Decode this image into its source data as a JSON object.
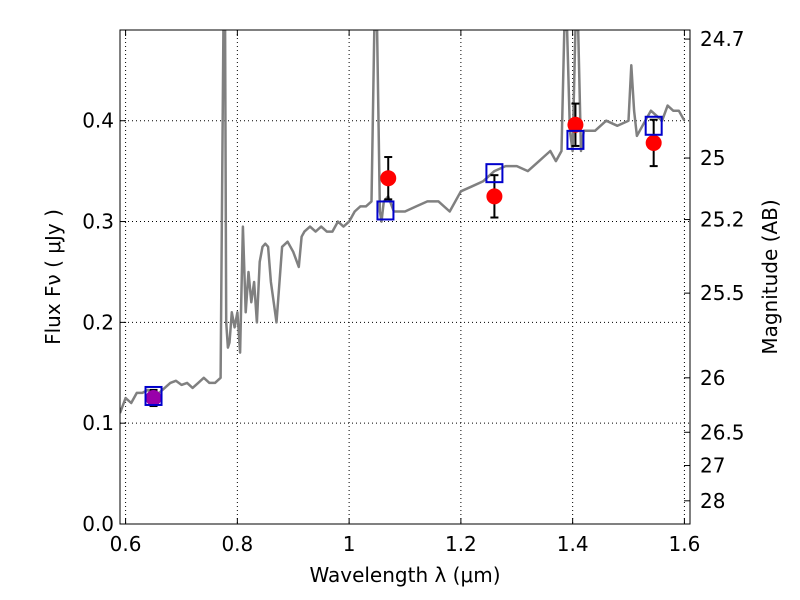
{
  "chart_data": {
    "type": "line",
    "title": "",
    "xlabel": "Wavelength  λ (μm)",
    "ylabel": "Flux  Fν  ( μJy )",
    "y2label": "Magnitude (AB)",
    "xlim": [
      0.59,
      1.61
    ],
    "ylim": [
      0.0,
      0.49
    ],
    "grid": true,
    "x_ticks": [
      0.6,
      0.8,
      1.0,
      1.2,
      1.4,
      1.6
    ],
    "x_tick_labels": [
      "0.6",
      "0.8",
      "1",
      "1.2",
      "1.4",
      "1.6"
    ],
    "y_ticks": [
      0.0,
      0.1,
      0.2,
      0.3,
      0.4
    ],
    "y_tick_labels": [
      "0.0",
      "0.1",
      "0.2",
      "0.3",
      "0.4"
    ],
    "y2_ticks": [
      {
        "label": "24.7",
        "flux": 0.481
      },
      {
        "label": "25",
        "flux": 0.363
      },
      {
        "label": "25.2",
        "flux": 0.302
      },
      {
        "label": "25.5",
        "flux": 0.229
      },
      {
        "label": "26",
        "flux": 0.145
      },
      {
        "label": "26.5",
        "flux": 0.091
      },
      {
        "label": "27",
        "flux": 0.058
      },
      {
        "label": "28",
        "flux": 0.023
      }
    ],
    "series": [
      {
        "kind": "line",
        "color": "#808080",
        "x": [
          0.59,
          0.6,
          0.61,
          0.62,
          0.63,
          0.64,
          0.65,
          0.66,
          0.67,
          0.68,
          0.69,
          0.7,
          0.71,
          0.72,
          0.73,
          0.74,
          0.75,
          0.76,
          0.77,
          0.775,
          0.778,
          0.78,
          0.783,
          0.786,
          0.79,
          0.795,
          0.8,
          0.805,
          0.81,
          0.815,
          0.82,
          0.825,
          0.83,
          0.835,
          0.84,
          0.845,
          0.85,
          0.855,
          0.86,
          0.87,
          0.88,
          0.89,
          0.9,
          0.91,
          0.915,
          0.92,
          0.93,
          0.94,
          0.95,
          0.96,
          0.97,
          0.98,
          0.99,
          1.0,
          1.01,
          1.02,
          1.03,
          1.04,
          1.045,
          1.05,
          1.055,
          1.058,
          1.062,
          1.07,
          1.08,
          1.09,
          1.1,
          1.12,
          1.14,
          1.16,
          1.18,
          1.2,
          1.22,
          1.24,
          1.26,
          1.28,
          1.3,
          1.32,
          1.34,
          1.35,
          1.36,
          1.37,
          1.38,
          1.385,
          1.39,
          1.395,
          1.4,
          1.405,
          1.41,
          1.415,
          1.42,
          1.44,
          1.46,
          1.48,
          1.5,
          1.505,
          1.51,
          1.515,
          1.52,
          1.53,
          1.54,
          1.55,
          1.56,
          1.57,
          1.58,
          1.59,
          1.6
        ],
        "y": [
          0.11,
          0.125,
          0.12,
          0.13,
          0.13,
          0.133,
          0.128,
          0.13,
          0.135,
          0.14,
          0.142,
          0.138,
          0.14,
          0.135,
          0.14,
          0.145,
          0.14,
          0.14,
          0.145,
          0.49,
          0.49,
          0.2,
          0.175,
          0.18,
          0.21,
          0.195,
          0.21,
          0.17,
          0.295,
          0.21,
          0.25,
          0.22,
          0.24,
          0.2,
          0.26,
          0.275,
          0.278,
          0.275,
          0.24,
          0.2,
          0.275,
          0.28,
          0.27,
          0.255,
          0.285,
          0.29,
          0.295,
          0.29,
          0.295,
          0.29,
          0.29,
          0.3,
          0.295,
          0.3,
          0.31,
          0.315,
          0.315,
          0.32,
          0.49,
          0.49,
          0.31,
          0.3,
          0.32,
          0.325,
          0.31,
          0.31,
          0.31,
          0.315,
          0.32,
          0.32,
          0.31,
          0.33,
          0.335,
          0.34,
          0.35,
          0.355,
          0.355,
          0.35,
          0.36,
          0.365,
          0.37,
          0.36,
          0.37,
          0.49,
          0.49,
          0.39,
          0.37,
          0.49,
          0.49,
          0.37,
          0.39,
          0.39,
          0.4,
          0.395,
          0.4,
          0.455,
          0.41,
          0.385,
          0.39,
          0.4,
          0.41,
          0.405,
          0.4,
          0.415,
          0.41,
          0.41,
          0.4
        ]
      }
    ],
    "model_points": {
      "color": "#0000cc",
      "marker": "open-square",
      "x": [
        0.65,
        1.065,
        1.26,
        1.405,
        1.545
      ],
      "y": [
        0.127,
        0.311,
        0.348,
        0.381,
        0.395
      ]
    },
    "observed_points": {
      "color": "#ff0000",
      "marker": "filled-circle",
      "x": [
        0.65,
        1.07,
        1.26,
        1.405,
        1.545
      ],
      "y": [
        0.125,
        0.343,
        0.325,
        0.396,
        0.378
      ],
      "yerr": [
        0.008,
        0.021,
        0.021,
        0.021,
        0.023
      ],
      "colors": [
        "#9900aa",
        "#ff0000",
        "#ff0000",
        "#ff0000",
        "#ff0000"
      ]
    }
  }
}
